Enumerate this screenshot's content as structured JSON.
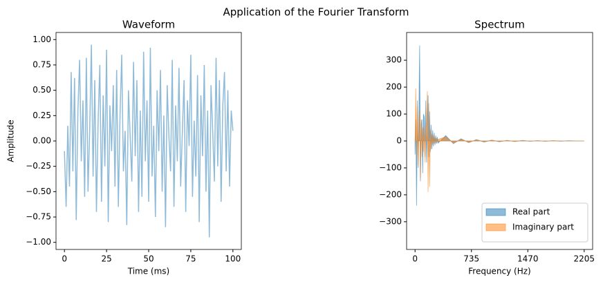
{
  "figure_title": "Application of the Fourier Transform",
  "chart_data": [
    {
      "type": "line",
      "title": "Waveform",
      "x_label": "Time (ms)",
      "y_label": "Amplitude",
      "xlim": [
        -5,
        105
      ],
      "ylim": [
        -1.07,
        1.07
      ],
      "xticks": [
        0,
        25,
        50,
        75,
        100
      ],
      "yticks": [
        {
          "value": -1,
          "label": "−1.00"
        },
        {
          "value": -0.75,
          "label": "−0.75"
        },
        {
          "value": -0.5,
          "label": "−0.50"
        },
        {
          "value": -0.25,
          "label": "−0.25"
        },
        {
          "value": 0,
          "label": "0.00"
        },
        {
          "value": 0.25,
          "label": "0.25"
        },
        {
          "value": 0.5,
          "label": "0.50"
        },
        {
          "value": 0.75,
          "label": "0.75"
        },
        {
          "value": 1,
          "label": "1.00"
        }
      ],
      "x": [
        0,
        1,
        2,
        3,
        4,
        5,
        6,
        7,
        8,
        9,
        10,
        11,
        12,
        13,
        14,
        15,
        16,
        17,
        18,
        19,
        20,
        21,
        22,
        23,
        24,
        25,
        26,
        27,
        28,
        29,
        30,
        31,
        32,
        33,
        34,
        35,
        36,
        37,
        38,
        39,
        40,
        41,
        42,
        43,
        44,
        45,
        46,
        47,
        48,
        49,
        50,
        51,
        52,
        53,
        54,
        55,
        56,
        57,
        58,
        59,
        60,
        61,
        62,
        63,
        64,
        65,
        66,
        67,
        68,
        69,
        70,
        71,
        72,
        73,
        74,
        75,
        76,
        77,
        78,
        79,
        80,
        81,
        82,
        83,
        84,
        85,
        86,
        87,
        88,
        89,
        90,
        91,
        92,
        93,
        94,
        95,
        96,
        97,
        98,
        99,
        100
      ],
      "series": [
        {
          "color": "#8fbbd9",
          "values": [
            -0.1,
            -0.65,
            0.15,
            -0.45,
            0.68,
            -0.3,
            0.62,
            -0.78,
            0.3,
            0.8,
            -0.2,
            0.4,
            -0.55,
            0.82,
            -0.5,
            0.12,
            0.95,
            -0.35,
            0.6,
            -0.7,
            0.2,
            0.75,
            -0.6,
            0.45,
            -0.25,
            0.9,
            -0.8,
            0.35,
            -0.1,
            0.55,
            -0.45,
            0.7,
            -0.65,
            0.25,
            0.85,
            -0.3,
            0.1,
            -0.83,
            0.5,
            0.05,
            -0.4,
            0.78,
            -0.15,
            0.6,
            -0.7,
            0.3,
            -0.55,
            0.88,
            -0.2,
            0.4,
            -0.6,
            0.92,
            -0.35,
            0.15,
            -0.75,
            0.5,
            -0.1,
            0.7,
            -0.5,
            0.25,
            -0.85,
            0.55,
            0.05,
            -0.3,
            0.8,
            -0.65,
            0.35,
            -0.2,
            0.72,
            -0.45,
            0.1,
            0.6,
            -0.7,
            0.4,
            -0.05,
            0.85,
            -0.55,
            0.2,
            -0.35,
            0.65,
            -0.8,
            0.45,
            -0.15,
            0.75,
            -0.5,
            0.3,
            -0.95,
            0.55,
            0.1,
            -0.4,
            0.82,
            -0.25,
            0.6,
            -0.6,
            0.35,
            0.68,
            -0.3,
            0.5,
            -0.45,
            0.3,
            0.1
          ]
        }
      ]
    },
    {
      "type": "area",
      "title": "Spectrum",
      "x_label": "Frequency (Hz)",
      "legend": "lower right",
      "xlim": [
        -110,
        2315
      ],
      "ylim": [
        -403,
        403
      ],
      "xticks": [
        0,
        735,
        1470,
        2205
      ],
      "yticks": [
        {
          "value": -300,
          "label": "−300"
        },
        {
          "value": -200,
          "label": "−200"
        },
        {
          "value": -100,
          "label": "−100"
        },
        0,
        100,
        200,
        300
      ],
      "x": [
        0,
        10,
        20,
        30,
        40,
        50,
        60,
        70,
        80,
        90,
        100,
        110,
        120,
        130,
        140,
        150,
        160,
        170,
        180,
        190,
        200,
        210,
        220,
        230,
        240,
        250,
        260,
        270,
        280,
        290,
        300,
        400,
        500,
        600,
        700,
        800,
        900,
        1000,
        1100,
        1200,
        1300,
        1400,
        1500,
        1600,
        1700,
        1800,
        1900,
        2000,
        2100,
        2200,
        2205
      ],
      "series": [
        {
          "name": "Real part",
          "color": "#1f77b4",
          "values": [
            -50,
            80,
            -240,
            150,
            -100,
            100,
            355,
            -150,
            60,
            80,
            -120,
            100,
            90,
            -60,
            150,
            -80,
            40,
            170,
            -60,
            110,
            -40,
            60,
            -30,
            40,
            -20,
            30,
            -15,
            20,
            -10,
            15,
            -8,
            20,
            -10,
            8,
            -6,
            5,
            -4,
            3,
            -3,
            2,
            -2,
            2,
            -1,
            1,
            -1,
            1,
            -1,
            1,
            0,
            0,
            0
          ]
        },
        {
          "name": "Imaginary part",
          "color": "#ff7f0e",
          "values": [
            0,
            195,
            -60,
            130,
            -90,
            60,
            110,
            -140,
            80,
            -60,
            50,
            -40,
            60,
            -80,
            40,
            60,
            185,
            -190,
            140,
            -170,
            40,
            -30,
            25,
            -15,
            20,
            -10,
            12,
            -8,
            10,
            -5,
            6,
            15,
            -8,
            6,
            -5,
            4,
            -3,
            3,
            -2,
            2,
            -2,
            1,
            -1,
            1,
            -1,
            1,
            0,
            0,
            0,
            0,
            0
          ]
        }
      ]
    }
  ]
}
